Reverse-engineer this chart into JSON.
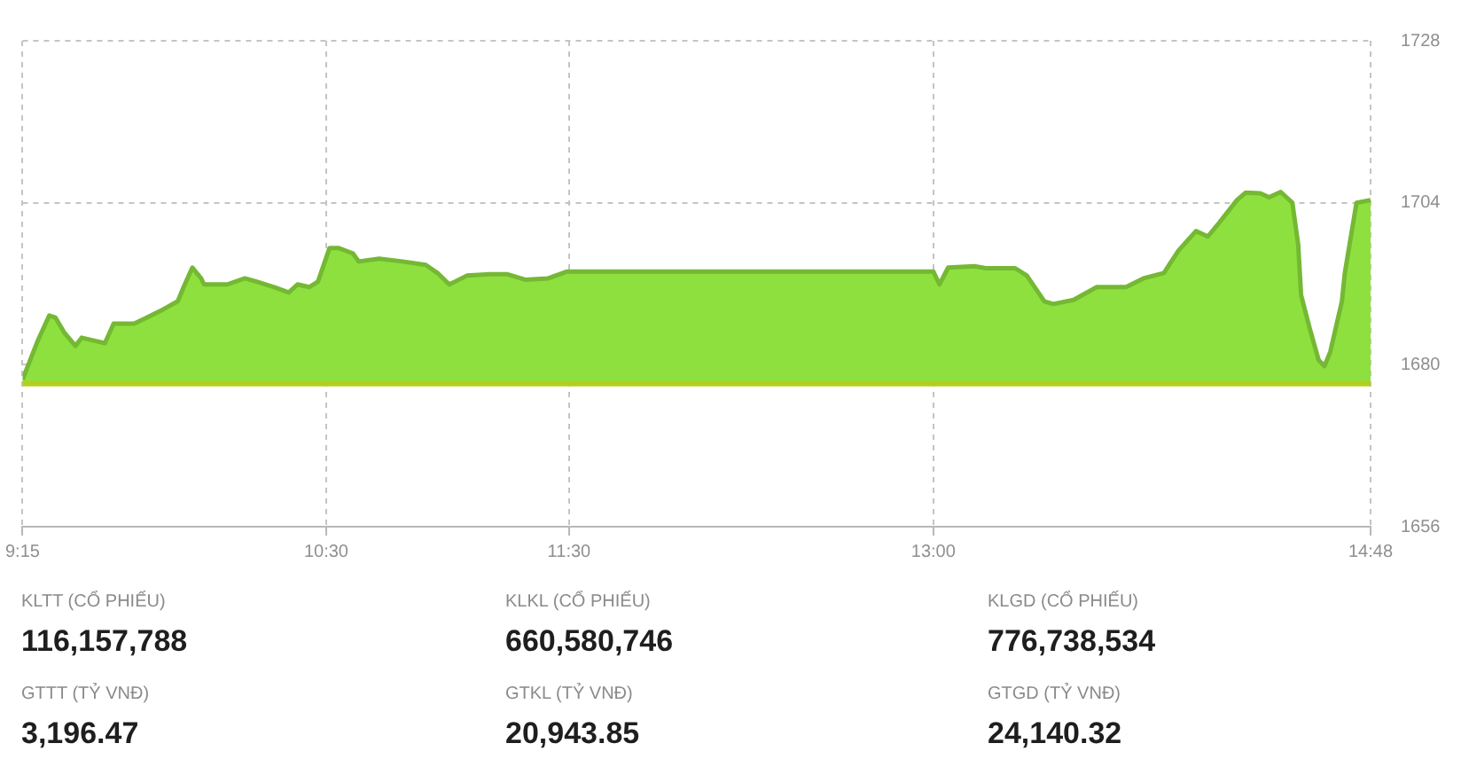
{
  "chart_data": [
    {
      "type": "area",
      "x": [
        9.25,
        9.277,
        9.313,
        9.36,
        9.385,
        9.421,
        9.468,
        9.493,
        9.54,
        9.589,
        9.625,
        9.709,
        9.757,
        9.829,
        9.889,
        9.913,
        9.949,
        9.985,
        9.997,
        10.093,
        10.165,
        10.214,
        10.286,
        10.346,
        10.382,
        10.43,
        10.466,
        10.49,
        10.514,
        10.55,
        10.61,
        10.634,
        10.718,
        10.814,
        10.91,
        10.958,
        11.007,
        11.079,
        11.174,
        11.247,
        11.319,
        11.414,
        11.49,
        13.0,
        13.025,
        13.061,
        13.169,
        13.216,
        13.337,
        13.385,
        13.457,
        13.493,
        13.577,
        13.673,
        13.793,
        13.865,
        13.949,
        14.009,
        14.081,
        14.13,
        14.178,
        14.25,
        14.286,
        14.346,
        14.382,
        14.43,
        14.478,
        14.502,
        14.514,
        14.55,
        14.586,
        14.61,
        14.634,
        14.682,
        14.694,
        14.742,
        14.8
      ],
      "series": [
        {
          "color": "#8ee03e",
          "values": [
            1677.8,
            1680.3,
            1683.6,
            1687.3,
            1687.0,
            1684.8,
            1682.8,
            1684.0,
            1683.6,
            1683.2,
            1686.1,
            1686.1,
            1686.9,
            1688.2,
            1689.4,
            1691.5,
            1694.4,
            1692.8,
            1691.9,
            1691.9,
            1692.8,
            1692.3,
            1691.5,
            1690.7,
            1691.9,
            1691.5,
            1692.3,
            1694.8,
            1697.3,
            1697.3,
            1696.5,
            1695.3,
            1695.7,
            1695.3,
            1694.8,
            1693.6,
            1691.9,
            1693.2,
            1693.4,
            1693.4,
            1692.6,
            1692.8,
            1693.8,
            1693.8,
            1691.9,
            1694.4,
            1694.6,
            1694.3,
            1694.3,
            1693.2,
            1689.4,
            1689.0,
            1689.6,
            1691.5,
            1691.5,
            1692.8,
            1693.6,
            1696.9,
            1699.8,
            1699.0,
            1701.1,
            1704.4,
            1705.5,
            1705.4,
            1704.8,
            1705.6,
            1704.0,
            1697.8,
            1690.3,
            1685.3,
            1680.7,
            1679.8,
            1681.9,
            1689.4,
            1693.6,
            1704.0,
            1704.4
          ]
        }
      ],
      "xlim": [
        9.25,
        14.8
      ],
      "xticks": [
        {
          "value": 9.25,
          "label": "9:15"
        },
        {
          "value": 10.5,
          "label": "10:30"
        },
        {
          "value": 11.5,
          "label": "11:30"
        },
        {
          "value": 13,
          "label": "13:00"
        },
        {
          "value": 14.8,
          "label": "14:48"
        }
      ],
      "ylim": [
        1656,
        1728
      ],
      "yticks": [
        1656,
        1680,
        1704,
        1728
      ],
      "grid": true,
      "ref_lines": [
        {
          "axis": "y",
          "value": 1677.2,
          "color": "#b3cf1c"
        }
      ]
    },
    {
      "type": "other",
      "annotations": [
        "KLTT (CỔ PHIẾU)",
        "116,157,788",
        "KLKL (CỔ PHIẾU)",
        "660,580,746",
        "KLGD (CỔ PHIẾU)",
        "776,738,534",
        "GTTT (TỶ VNĐ)",
        "3,196.47",
        "GTKL (TỶ VNĐ)",
        "20,943.85",
        "GTGD (TỶ VNĐ)",
        "24,140.32"
      ]
    }
  ]
}
